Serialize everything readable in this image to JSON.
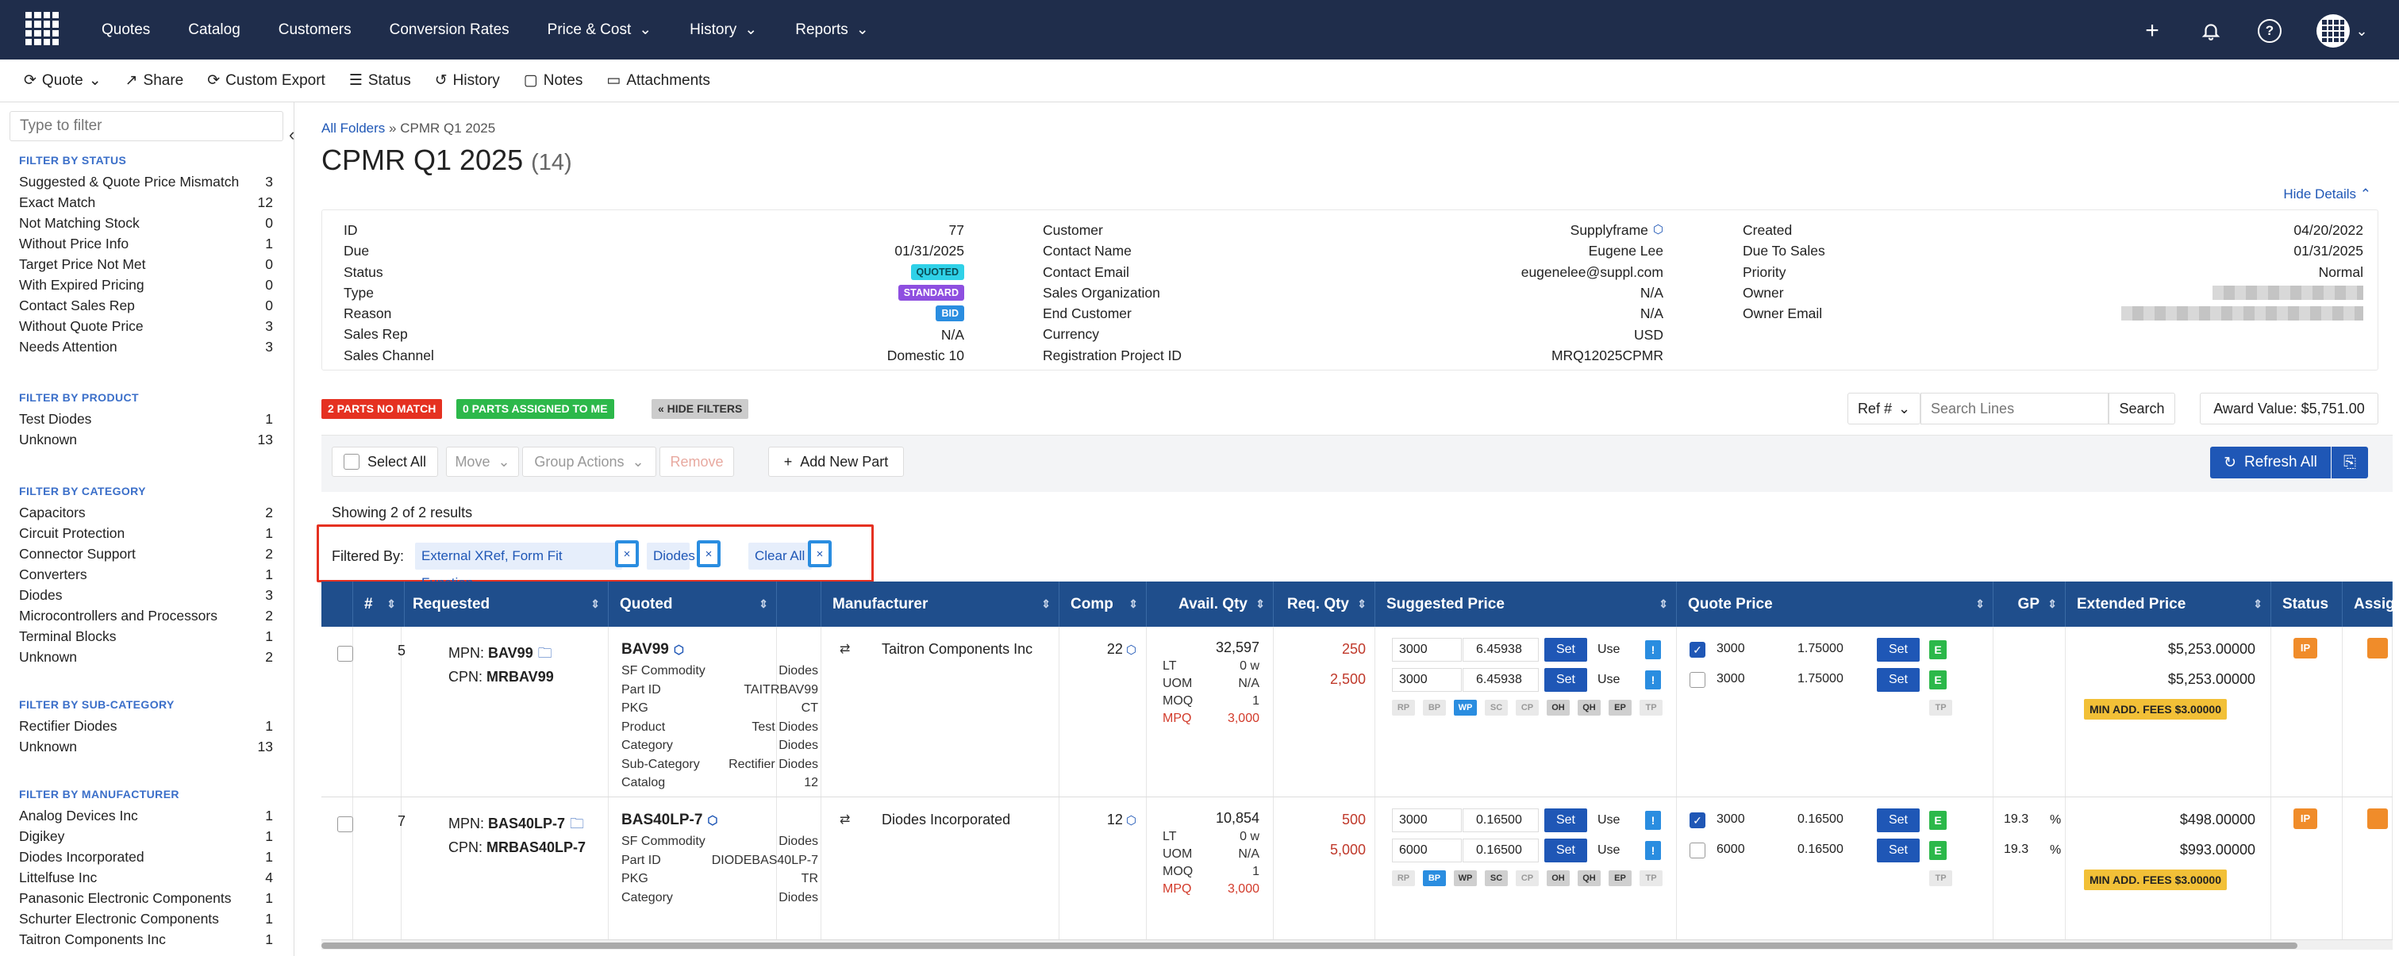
{
  "topnav": {
    "items": [
      "Quotes",
      "Catalog",
      "Customers",
      "Conversion Rates",
      "Price & Cost",
      "History",
      "Reports"
    ]
  },
  "subnav": {
    "items": [
      "Quote",
      "Share",
      "Custom Export",
      "Status",
      "History",
      "Notes",
      "Attachments"
    ]
  },
  "sidebar": {
    "filter_placeholder": "Type to filter",
    "groups": [
      {
        "title": "FILTER BY STATUS",
        "rows": [
          [
            "Suggested & Quote Price Mismatch",
            "3"
          ],
          [
            "Exact Match",
            "12"
          ],
          [
            "Not Matching Stock",
            "0"
          ],
          [
            "Without Price Info",
            "1"
          ],
          [
            "Target Price Not Met",
            "0"
          ],
          [
            "With Expired Pricing",
            "0"
          ],
          [
            "Contact Sales Rep",
            "0"
          ],
          [
            "Without Quote Price",
            "3"
          ],
          [
            "Needs Attention",
            "3"
          ]
        ]
      },
      {
        "title": "FILTER BY PRODUCT",
        "rows": [
          [
            "Test Diodes",
            "1"
          ],
          [
            "Unknown",
            "13"
          ]
        ]
      },
      {
        "title": "FILTER BY CATEGORY",
        "rows": [
          [
            "Capacitors",
            "2"
          ],
          [
            "Circuit Protection",
            "1"
          ],
          [
            "Connector Support",
            "2"
          ],
          [
            "Converters",
            "1"
          ],
          [
            "Diodes",
            "3"
          ],
          [
            "Microcontrollers and Processors",
            "2"
          ],
          [
            "Terminal Blocks",
            "1"
          ],
          [
            "Unknown",
            "2"
          ]
        ]
      },
      {
        "title": "FILTER BY SUB-CATEGORY",
        "rows": [
          [
            "Rectifier Diodes",
            "1"
          ],
          [
            "Unknown",
            "13"
          ]
        ]
      },
      {
        "title": "FILTER BY MANUFACTURER",
        "rows": [
          [
            "Analog Devices Inc",
            "1"
          ],
          [
            "Digikey",
            "1"
          ],
          [
            "Diodes Incorporated",
            "1"
          ],
          [
            "Littelfuse Inc",
            "4"
          ],
          [
            "Panasonic Electronic Components",
            "1"
          ],
          [
            "Schurter Electronic Components",
            "1"
          ],
          [
            "Taitron Components Inc",
            "1"
          ]
        ]
      }
    ]
  },
  "page": {
    "crumb_link": "All Folders",
    "crumb_sep": " » ",
    "crumb_current": "CPMR Q1 2025",
    "title": "CPMR Q1 2025",
    "count": "(14)",
    "hide_details": "Hide Details"
  },
  "details": {
    "col1": [
      [
        "ID",
        "77"
      ],
      [
        "Due",
        "01/31/2025"
      ],
      [
        "Status",
        "QUOTED"
      ],
      [
        "Type",
        "STANDARD"
      ],
      [
        "Reason",
        "BID"
      ],
      [
        "Sales Rep",
        "N/A"
      ],
      [
        "Sales Channel",
        "Domestic 10"
      ]
    ],
    "col2": [
      [
        "Customer",
        "Supplyframe"
      ],
      [
        "Contact Name",
        "Eugene Lee"
      ],
      [
        "Contact Email",
        "eugenelee@suppl.com"
      ],
      [
        "Sales Organization",
        "N/A"
      ],
      [
        "End Customer",
        "N/A"
      ],
      [
        "Currency",
        "USD"
      ],
      [
        "Registration Project ID",
        "MRQ12025CPMR"
      ]
    ],
    "col3": [
      [
        "Created",
        "04/20/2022"
      ],
      [
        "Due To Sales",
        "01/31/2025"
      ],
      [
        "Priority",
        "Normal"
      ],
      [
        "Owner",
        ""
      ],
      [
        "Owner Email",
        ""
      ]
    ]
  },
  "tags": {
    "no_match": "2 PARTS NO MATCH",
    "assigned": "0 PARTS ASSIGNED TO ME",
    "hide_filters": "« HIDE FILTERS"
  },
  "search": {
    "ref": "Ref #",
    "placeholder": "Search Lines",
    "button": "Search",
    "award": "Award Value: $5,751.00"
  },
  "actions": {
    "select_all": "Select All",
    "move": "Move",
    "group": "Group Actions",
    "remove": "Remove",
    "add": "Add New Part",
    "refresh": "Refresh All"
  },
  "results": {
    "showing": "Showing 2 of 2 results",
    "filtered_by": "Filtered By:",
    "chip1": "External XRef, Form Fit Function",
    "chip2": "Diodes",
    "clear": "Clear All",
    "x": "×"
  },
  "table": {
    "headers": [
      "#",
      "Requested",
      "Quoted",
      "Manufacturer",
      "Comp",
      "Avail. Qty",
      "Req. Qty",
      "Suggested Price",
      "Quote Price",
      "GP",
      "Extended Price",
      "Status",
      "Assig"
    ],
    "rows": [
      {
        "num": "5",
        "mpn_label": "MPN:",
        "mpn": "BAV99",
        "cpn_label": "CPN:",
        "cpn": "MRBAV99",
        "quoted": "BAV99",
        "attrs": [
          [
            "SF Commodity",
            "Diodes"
          ],
          [
            "Part ID",
            "TAITRBAV99"
          ],
          [
            "PKG",
            "CT"
          ],
          [
            "Product",
            "Test Diodes"
          ],
          [
            "Category",
            "Diodes"
          ],
          [
            "Sub-Category",
            "Rectifier Diodes"
          ],
          [
            "Catalog",
            "12"
          ]
        ],
        "mfr": "Taitron Components Inc",
        "comp": "22",
        "avail": "32,597",
        "lt": [
          "LT",
          "0 w"
        ],
        "uom": [
          "UOM",
          "N/A"
        ],
        "moq": [
          "MOQ",
          "1"
        ],
        "mpq": [
          "MPQ",
          "3,000"
        ],
        "req1": "250",
        "req2": "2,500",
        "sp": [
          [
            "3000",
            "6.45938"
          ],
          [
            "3000",
            "6.45938"
          ]
        ],
        "qp": [
          [
            "3000",
            "1.75000"
          ],
          [
            "3000",
            "1.75000"
          ]
        ],
        "gp": [
          "",
          ""
        ],
        "ext": [
          "$5,253.00000",
          "$5,253.00000"
        ],
        "fee": "MIN ADD. FEES $3.00000",
        "status": "IP"
      },
      {
        "num": "7",
        "mpn_label": "MPN:",
        "mpn": "BAS40LP-7",
        "cpn_label": "CPN:",
        "cpn": "MRBAS40LP-7",
        "quoted": "BAS40LP-7",
        "attrs": [
          [
            "SF Commodity",
            "Diodes"
          ],
          [
            "Part ID",
            "DIODEBAS40LP-7"
          ],
          [
            "PKG",
            "TR"
          ],
          [
            "Category",
            "Diodes"
          ]
        ],
        "mfr": "Diodes Incorporated",
        "comp": "12",
        "avail": "10,854",
        "lt": [
          "LT",
          "0 w"
        ],
        "uom": [
          "UOM",
          "N/A"
        ],
        "moq": [
          "MOQ",
          "1"
        ],
        "mpq": [
          "MPQ",
          "3,000"
        ],
        "req1": "500",
        "req2": "5,000",
        "sp": [
          [
            "3000",
            "0.16500"
          ],
          [
            "6000",
            "0.16500"
          ]
        ],
        "qp": [
          [
            "3000",
            "0.16500"
          ],
          [
            "6000",
            "0.16500"
          ]
        ],
        "gp": [
          "19.3",
          "19.3"
        ],
        "ext": [
          "$498.00000",
          "$993.00000"
        ],
        "fee": "MIN ADD. FEES $3.00000",
        "status": "IP"
      }
    ],
    "set": "Set",
    "use": "Use",
    "bang": "!",
    "e": "E",
    "pct": "%",
    "pills": [
      "RP",
      "BP",
      "WP",
      "SC",
      "CP",
      "OH",
      "QH",
      "EP",
      "TP"
    ],
    "tp": "TP"
  }
}
